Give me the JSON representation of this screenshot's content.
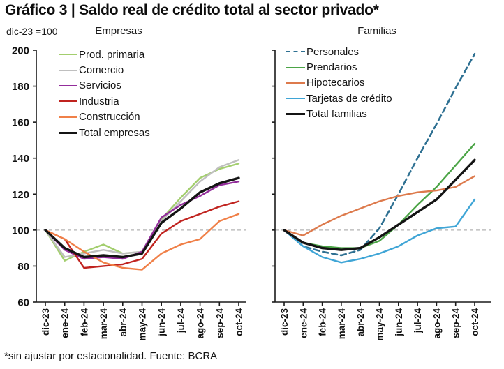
{
  "title": "Gráfico 3 | Saldo real de crédito total al sector privado*",
  "axis_note": "dic-23 =100",
  "footnote": "*sin ajustar por estacionalidad. Fuente: BCRA",
  "reference_line_color": "#b3b3b3",
  "axis_color": "#1a1a1a",
  "chart_data": [
    {
      "type": "line",
      "title": "Empresas",
      "x": [
        "dic-23",
        "ene-24",
        "feb-24",
        "mar-24",
        "abr-24",
        "may-24",
        "jun-24",
        "jul-24",
        "ago-24",
        "sep-24",
        "oct-24"
      ],
      "ylim": [
        60,
        200
      ],
      "yticks": [
        60,
        80,
        100,
        120,
        140,
        160,
        180,
        200
      ],
      "reference_line": 100,
      "legend_position": "upper-left",
      "grid": false,
      "series": [
        {
          "name": "Prod. primaria",
          "color": "#a3ce6e",
          "values": [
            100,
            83,
            88,
            92,
            87,
            88,
            106,
            118,
            129,
            134,
            137
          ]
        },
        {
          "name": "Comercio",
          "color": "#bfbfbf",
          "values": [
            100,
            85,
            87,
            89,
            87,
            88,
            105,
            116,
            127,
            135,
            139
          ]
        },
        {
          "name": "Servicios",
          "color": "#932d9b",
          "values": [
            100,
            89,
            84,
            85,
            84,
            88,
            107,
            114,
            119,
            125,
            127
          ]
        },
        {
          "name": "Industria",
          "color": "#c0231f",
          "values": [
            100,
            95,
            79,
            80,
            81,
            84,
            98,
            105,
            109,
            113,
            116
          ]
        },
        {
          "name": "Construcción",
          "color": "#f08048",
          "values": [
            100,
            95,
            88,
            82,
            79,
            78,
            87,
            92,
            95,
            105,
            109
          ]
        },
        {
          "name": "Total empresas",
          "color": "#141414",
          "width": 3.4,
          "values": [
            100,
            90,
            85,
            86,
            85,
            87,
            104,
            112,
            121,
            126,
            129
          ]
        }
      ]
    },
    {
      "type": "line",
      "title": "Familias",
      "x": [
        "dic-23",
        "ene-24",
        "feb-24",
        "mar-24",
        "abr-24",
        "may-24",
        "jun-24",
        "jul-24",
        "ago-24",
        "sep-24",
        "oct-24"
      ],
      "ylim": [
        60,
        200
      ],
      "yticks": [
        60,
        80,
        100,
        120,
        140,
        160,
        180,
        200
      ],
      "reference_line": 100,
      "legend_position": "upper-left",
      "grid": false,
      "series": [
        {
          "name": "Personales",
          "color": "#2e7092",
          "dash": true,
          "width": 2.6,
          "values": [
            100,
            91,
            88,
            86,
            89,
            101,
            120,
            140,
            159,
            179,
            198
          ]
        },
        {
          "name": "Prendarios",
          "color": "#4ba446",
          "values": [
            100,
            93,
            91,
            90,
            90,
            94,
            103,
            114,
            124,
            136,
            148
          ]
        },
        {
          "name": "Hipotecarios",
          "color": "#dd7a4c",
          "values": [
            100,
            97,
            103,
            108,
            112,
            116,
            119,
            121,
            122,
            124,
            130
          ]
        },
        {
          "name": "Tarjetas de crédito",
          "color": "#3fa5d6",
          "values": [
            100,
            91,
            85,
            82,
            84,
            87,
            91,
            97,
            101,
            102,
            117
          ]
        },
        {
          "name": "Total familias",
          "color": "#141414",
          "width": 3.4,
          "values": [
            100,
            93,
            90,
            89,
            90,
            96,
            103,
            110,
            117,
            128,
            139
          ]
        }
      ]
    }
  ]
}
